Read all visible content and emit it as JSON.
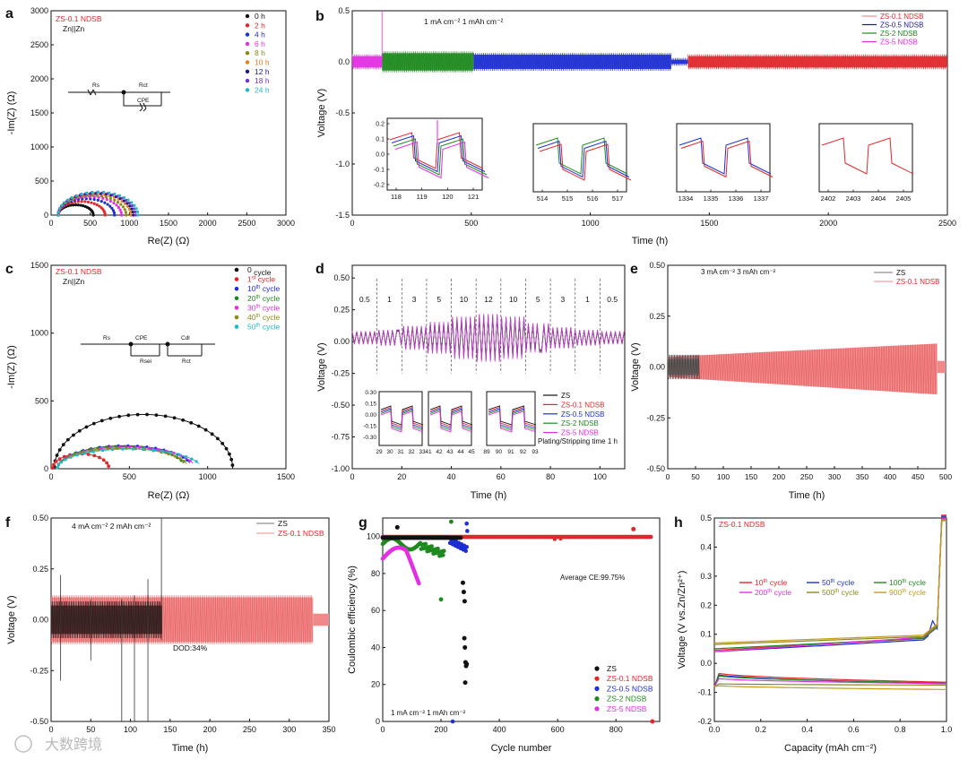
{
  "panels": {
    "a": {
      "letter": "a",
      "sample": "ZS-0.1 NDSB",
      "cell": "Zn||Zn",
      "xlabel": "Re(Z) (Ω)",
      "ylabel": "-Im(Z) (Ω)",
      "xticks": [
        0,
        500,
        1000,
        1500,
        2000,
        2500,
        3000
      ],
      "yticks": [
        0,
        500,
        1000,
        1500,
        2000,
        2500,
        3000
      ],
      "circuit": {
        "r1": "Rs",
        "r2": "Rct",
        "c": "CPE"
      },
      "legend": [
        "0 h",
        "2 h",
        "4 h",
        "6 h",
        "8 h",
        "10 h",
        "12 h",
        "18 h",
        "24 h"
      ]
    },
    "b": {
      "letter": "b",
      "condition": "1 mA cm⁻² 1 mAh cm⁻²",
      "xlabel": "Time (h)",
      "ylabel": "Voltage (V)",
      "xticks": [
        0,
        500,
        1000,
        1500,
        2000,
        2500
      ],
      "yticks": [
        "0.5",
        "0.0",
        "-0.5",
        "-1.0",
        "-1.5"
      ],
      "legend": [
        "ZS-0.1 NDSB",
        "ZS-0.5 NDSB",
        "ZS-2 NDSB",
        "ZS-5 NDSB"
      ],
      "insets": [
        {
          "xticks": [
            "118",
            "119",
            "120",
            "121"
          ],
          "yticks": [
            "0.2",
            "0.1",
            "0.0",
            "-0.1",
            "-0.2"
          ]
        },
        {
          "xticks": [
            "514",
            "515",
            "516",
            "517"
          ]
        },
        {
          "xticks": [
            "1334",
            "1335",
            "1336",
            "1337"
          ]
        },
        {
          "xticks": [
            "2402",
            "2403",
            "2404",
            "2405"
          ]
        }
      ]
    },
    "c": {
      "letter": "c",
      "sample": "ZS-0.1 NDSB",
      "cell": "Zn||Zn",
      "xlabel": "Re(Z) (Ω)",
      "ylabel": "-Im(Z) (Ω)",
      "xticks": [
        0,
        500,
        1000,
        1500
      ],
      "yticks": [
        0,
        500,
        1000,
        1500
      ],
      "circuit": {
        "r1": "Rs",
        "c1": "CPE",
        "r2": "Rsei",
        "c2": "Cdl",
        "r3": "Rct"
      },
      "legend": [
        {
          "n": "0",
          "sup": "",
          "t": "  cycle"
        },
        {
          "n": "1",
          "sup": "st",
          "t": " cycle"
        },
        {
          "n": "10",
          "sup": "th",
          "t": " cycle"
        },
        {
          "n": "20",
          "sup": "th",
          "t": " cycle"
        },
        {
          "n": "30",
          "sup": "th",
          "t": " cycle"
        },
        {
          "n": "40",
          "sup": "th",
          "t": " cycle"
        },
        {
          "n": "50",
          "sup": "th",
          "t": " cycle"
        }
      ]
    },
    "d": {
      "letter": "d",
      "xlabel": "Time (h)",
      "ylabel": "Voltage (V)",
      "xticks": [
        0,
        20,
        40,
        60,
        80,
        100
      ],
      "yticks": [
        "0.50",
        "0.25",
        "0.00",
        "-0.25",
        "-0.50",
        "-0.75",
        "-1.00"
      ],
      "rates": [
        "0.5",
        "1",
        "3",
        "5",
        "10",
        "12",
        "10",
        "5",
        "3",
        "1",
        "0.5"
      ],
      "legend": [
        "ZS",
        "ZS-0.1 NDSB",
        "ZS-0.5 NDSB",
        "ZS-2 NDSB",
        "ZS-5 NDSB"
      ],
      "note": "Plating/Stripping time 1 h",
      "inset_yticks": [
        "0.30",
        "0.15",
        "0.00",
        "-0.15",
        "-0.30"
      ],
      "inset_xticks": [
        "29",
        "30",
        "31",
        "32",
        "33",
        "41",
        "42",
        "43",
        "44",
        "45",
        "89",
        "90",
        "91",
        "92",
        "93"
      ]
    },
    "e": {
      "letter": "e",
      "condition": "3 mA cm⁻² 3 mAh cm⁻²",
      "xlabel": "Time (h)",
      "ylabel": "Voltage (V)",
      "xticks": [
        0,
        50,
        100,
        150,
        200,
        250,
        300,
        350,
        400,
        450,
        500
      ],
      "yticks": [
        "0.50",
        "0.25",
        "0.00",
        "-0.25",
        "-0.50"
      ],
      "legend": [
        "ZS",
        "ZS-0.1 NDSB"
      ]
    },
    "f": {
      "letter": "f",
      "condition": "4 mA cm⁻²  2 mAh cm⁻²",
      "note": "DOD:34%",
      "xlabel": "Time (h)",
      "ylabel": "Voltage (V)",
      "xticks": [
        0,
        50,
        100,
        150,
        200,
        250,
        300,
        350
      ],
      "yticks": [
        "0.50",
        "0.25",
        "0.00",
        "-0.25",
        "-0.50"
      ],
      "legend": [
        "ZS",
        "ZS-0.1 NDSB"
      ]
    },
    "g": {
      "letter": "g",
      "xlabel": "Cycle number",
      "ylabel": "Coulombic efficiency (%)",
      "xticks": [
        0,
        200,
        400,
        600,
        800
      ],
      "yticks": [
        0,
        20,
        40,
        60,
        80,
        100
      ],
      "note": "Average CE:99.75%",
      "condition": "1 mA cm⁻²  1 mAh cm⁻²",
      "legend": [
        "ZS",
        "ZS-0.1 NDSB",
        "ZS-0.5 NDSB",
        "ZS-2 NDSB",
        "ZS-5 NDSB"
      ]
    },
    "h": {
      "letter": "h",
      "sample": "ZS-0.1 NDSB",
      "xlabel": "Capacity (mAh cm⁻²)",
      "ylabel": "Voltage (V vs.Zn/Zn²⁺)",
      "xticks": [
        "0.0",
        "0.2",
        "0.4",
        "0.6",
        "0.8",
        "1.0"
      ],
      "yticks": [
        "0.5",
        "0.4",
        "0.3",
        "0.2",
        "0.1",
        "0.0",
        "-0.1",
        "-0.2"
      ],
      "legend": [
        {
          "n": "10",
          "t": " cycle"
        },
        {
          "n": "50",
          "t": " cycle"
        },
        {
          "n": "100",
          "t": " cycle"
        },
        {
          "n": "200",
          "t": " cycle"
        },
        {
          "n": "500",
          "t": " cycle"
        },
        {
          "n": "900",
          "t": " cycle"
        }
      ],
      "sup": "th"
    }
  },
  "watermark": "大数跨境",
  "colors": {
    "black": "#111111",
    "red": "#e0282c",
    "blue": "#1d2fd1",
    "green": "#1e8a1e",
    "magenta": "#e32fe3",
    "orange": "#e87d1a",
    "olive": "#8a8a18",
    "purple": "#7b2fc9",
    "cyan": "#22b8c8",
    "navy": "#1a1a8a",
    "salmon": "#f08a8a",
    "gold": "#c49a1a"
  },
  "chart_data": [
    {
      "panel": "a",
      "type": "scatter",
      "xlabel": "Re(Z) (Ω)",
      "ylabel": "-Im(Z) (Ω)",
      "xlim": [
        0,
        3000
      ],
      "ylim": [
        0,
        3000
      ],
      "series": [
        {
          "name": "0 h",
          "x": [
            0,
            50,
            100,
            200,
            300,
            400,
            480,
            500
          ],
          "y": [
            0,
            90,
            130,
            165,
            160,
            120,
            40,
            0
          ]
        },
        {
          "name": "2 h",
          "x": [
            0,
            100,
            200,
            350,
            500,
            600,
            650
          ],
          "y": [
            0,
            120,
            190,
            240,
            210,
            130,
            0
          ]
        },
        {
          "name": "24 h",
          "x": [
            0,
            150,
            300,
            500,
            700,
            850,
            950
          ],
          "y": [
            0,
            160,
            260,
            320,
            300,
            190,
            0
          ]
        }
      ]
    },
    {
      "panel": "b",
      "type": "line",
      "xlabel": "Time (h)",
      "ylabel": "Voltage (V)",
      "xlim": [
        0,
        2500
      ],
      "ylim": [
        -1.5,
        0.5
      ],
      "series": [
        {
          "name": "ZS-5 NDSB",
          "x": [
            0,
            125
          ],
          "y": [
            0.05,
            0.05
          ]
        },
        {
          "name": "ZS-2 NDSB",
          "x": [
            125,
            510
          ],
          "y": [
            0.08,
            0.08
          ]
        },
        {
          "name": "ZS-0.5 NDSB",
          "x": [
            510,
            1340
          ],
          "y": [
            0.07,
            0.07
          ]
        },
        {
          "name": "ZS-0.1 NDSB",
          "x": [
            1400,
            2500
          ],
          "y": [
            0.05,
            0.05
          ]
        }
      ]
    },
    {
      "panel": "c",
      "type": "scatter",
      "xlabel": "Re(Z) (Ω)",
      "ylabel": "-Im(Z) (Ω)",
      "xlim": [
        0,
        1500
      ],
      "ylim": [
        0,
        1500
      ],
      "series": [
        {
          "name": "0 cycle",
          "x": [
            0,
            100,
            200,
            400,
            600,
            800,
            1000,
            1100,
            1160
          ],
          "y": [
            0,
            150,
            250,
            360,
            400,
            380,
            290,
            180,
            0
          ]
        },
        {
          "name": "1st cycle",
          "x": [
            0,
            50,
            100,
            200,
            300,
            350,
            380
          ],
          "y": [
            0,
            70,
            95,
            110,
            90,
            40,
            0
          ]
        },
        {
          "name": "50th cycle",
          "x": [
            0,
            100,
            300,
            500,
            700,
            900,
            1000
          ],
          "y": [
            0,
            110,
            160,
            170,
            150,
            100,
            60
          ]
        }
      ]
    },
    {
      "panel": "d",
      "type": "line",
      "xlabel": "Time (h)",
      "ylabel": "Voltage (V)",
      "xlim": [
        0,
        110
      ],
      "ylim": [
        -1.0,
        0.5
      ],
      "categories": [
        "0.5",
        "1",
        "3",
        "5",
        "10",
        "12",
        "10",
        "5",
        "3",
        "1",
        "0.5"
      ]
    },
    {
      "panel": "e",
      "type": "line",
      "xlabel": "Time (h)",
      "ylabel": "Voltage (V)",
      "xlim": [
        0,
        500
      ],
      "ylim": [
        -0.5,
        0.5
      ],
      "series": [
        {
          "name": "ZS",
          "x": [
            0,
            57
          ],
          "y": [
            0.03,
            0.03
          ]
        },
        {
          "name": "ZS-0.1 NDSB",
          "x": [
            0,
            100,
            200,
            300,
            400,
            485
          ],
          "y": [
            0.06,
            0.07,
            0.08,
            0.09,
            0.1,
            0.12
          ]
        }
      ]
    },
    {
      "panel": "f",
      "type": "line",
      "xlabel": "Time (h)",
      "ylabel": "Voltage (V)",
      "xlim": [
        0,
        350
      ],
      "ylim": [
        -0.5,
        0.5
      ],
      "series": [
        {
          "name": "ZS",
          "x": [
            0,
            140
          ],
          "y": [
            0.05,
            0.05
          ]
        },
        {
          "name": "ZS-0.1 NDSB",
          "x": [
            0,
            100,
            200,
            300,
            330
          ],
          "y": [
            0.07,
            0.09,
            0.1,
            0.1,
            0.1
          ]
        }
      ]
    },
    {
      "panel": "g",
      "type": "scatter",
      "xlabel": "Cycle number",
      "ylabel": "Coulombic efficiency (%)",
      "xlim": [
        0,
        950
      ],
      "ylim": [
        0,
        110
      ],
      "series": [
        {
          "name": "ZS",
          "x": [
            50,
            280,
            283,
            286,
            289,
            292,
            295
          ],
          "y": [
            105,
            75,
            70,
            45,
            38,
            30,
            20
          ]
        },
        {
          "name": "ZS-0.1 NDSB",
          "x": [
            0,
            200,
            400,
            600,
            800,
            920
          ],
          "y": [
            99,
            99.7,
            99.8,
            99.8,
            99.8,
            99.8
          ]
        },
        {
          "name": "ZS-0.5 NDSB",
          "x": [
            0,
            100,
            200,
            250,
            280,
            290
          ],
          "y": [
            97,
            99.5,
            99.6,
            97,
            95,
            107
          ]
        },
        {
          "name": "ZS-2 NDSB",
          "x": [
            0,
            50,
            100,
            150,
            200,
            210
          ],
          "y": [
            95,
            98,
            99,
            97,
            90,
            66
          ]
        },
        {
          "name": "ZS-5 NDSB",
          "x": [
            0,
            30,
            60,
            90,
            120
          ],
          "y": [
            88,
            93,
            94,
            88,
            78
          ]
        }
      ]
    },
    {
      "panel": "h",
      "type": "line",
      "xlabel": "Capacity (mAh cm⁻²)",
      "ylabel": "Voltage (V vs.Zn/Zn²⁺)",
      "xlim": [
        0,
        1.0
      ],
      "ylim": [
        -0.2,
        0.5
      ],
      "series": [
        {
          "name": "10th cycle",
          "x": [
            0,
            0.5,
            0.9,
            0.98,
            1.0
          ],
          "y": [
            0.045,
            0.06,
            0.08,
            0.1,
            0.5
          ]
        },
        {
          "name": "50th cycle",
          "x": [
            0,
            0.5,
            0.9,
            0.95,
            1.0
          ],
          "y": [
            0.04,
            0.055,
            0.075,
            0.13,
            0.51
          ]
        },
        {
          "name": "900th cycle",
          "x": [
            0,
            0.5,
            0.9,
            0.98,
            1.0
          ],
          "y": [
            0.07,
            0.085,
            0.09,
            0.1,
            0.47
          ]
        }
      ]
    }
  ]
}
